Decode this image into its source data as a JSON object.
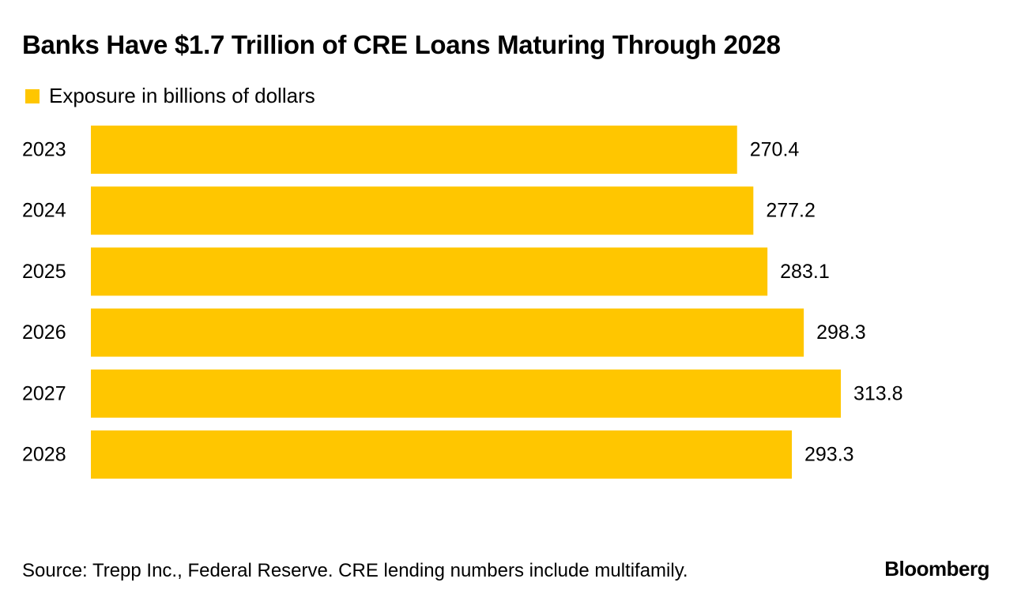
{
  "chart_data": {
    "type": "bar",
    "orientation": "horizontal",
    "title": "Banks Have $1.7 Trillion of CRE Loans Maturing Through 2028",
    "legend": [
      "Exposure in billions of dollars"
    ],
    "categories": [
      "2023",
      "2024",
      "2025",
      "2026",
      "2027",
      "2028"
    ],
    "values": [
      270.4,
      277.2,
      283.1,
      298.3,
      313.8,
      293.3
    ],
    "value_labels": [
      "270.4",
      "277.2",
      "283.1",
      "298.3",
      "313.8",
      "293.3"
    ],
    "xlabel": "",
    "ylabel": "",
    "xlim": [
      0,
      313.8
    ],
    "grid": false,
    "legend_position": "top-left"
  },
  "colors": {
    "bar": "#FFC600",
    "text": "#000000",
    "background": "#FFFFFF"
  },
  "footer": {
    "source": "Source: Trepp Inc., Federal Reserve. CRE lending numbers include multifamily.",
    "brand": "Bloomberg"
  }
}
